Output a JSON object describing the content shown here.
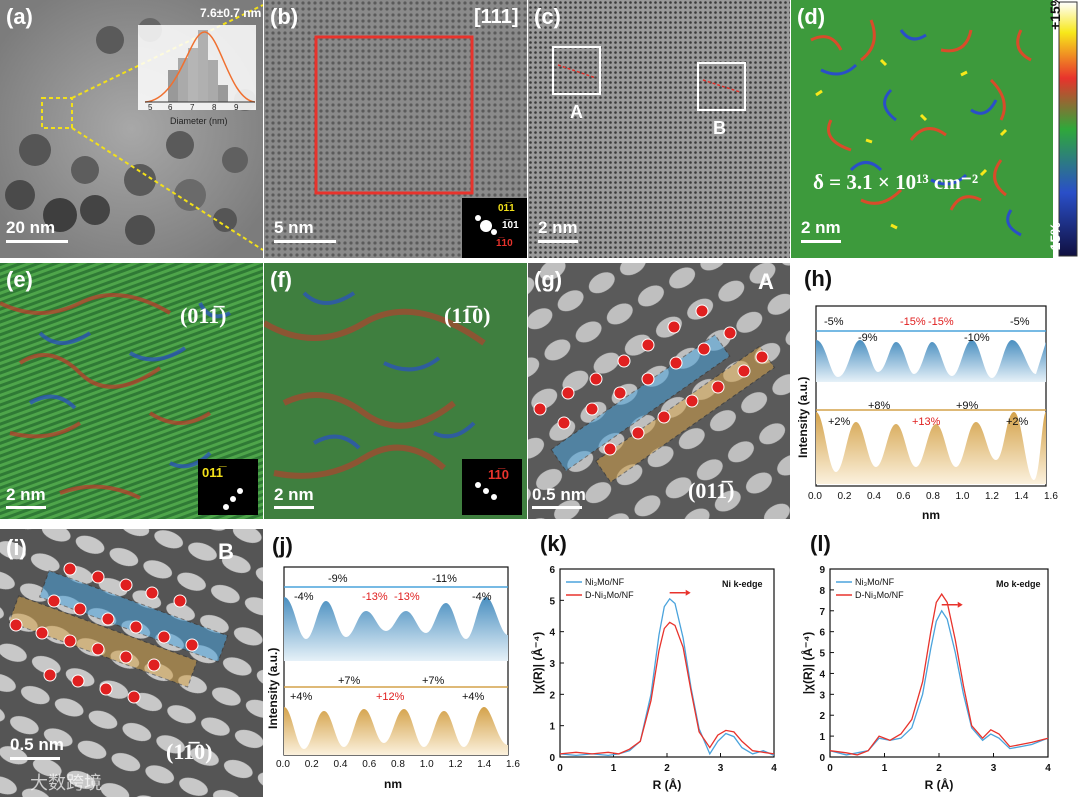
{
  "panels": {
    "a": {
      "label": "(a)",
      "scale": "20 nm",
      "inset_title": "7.6±0.7 nm",
      "inset_xlabel": "Diameter (nm)",
      "inset_ticks": [
        "5",
        "6",
        "7",
        "8",
        "9"
      ]
    },
    "b": {
      "label": "(b)",
      "zone": "[111]",
      "scale": "5 nm",
      "fft_labels": [
        "01̅1",
        "1̅01",
        "1̅10"
      ]
    },
    "c": {
      "label": "(c)",
      "scale": "2 nm",
      "box_a": "A",
      "box_b": "B"
    },
    "d": {
      "label": "(d)",
      "scale": "2 nm",
      "density": "δ = 3.1 × 10¹³ cm⁻²",
      "cbar_top": "+15%",
      "cbar_bottom": "-15%"
    },
    "e": {
      "label": "(e)",
      "plane": "(011̅)",
      "scale": "2 nm",
      "fft": "011̅"
    },
    "f": {
      "label": "(f)",
      "plane": "(11̅0)",
      "scale": "2 nm",
      "fft": "11̅0"
    },
    "g": {
      "label": "(g)",
      "tag": "A",
      "scale": "0.5 nm",
      "plane": "(011̅)"
    },
    "i": {
      "label": "(i)",
      "tag": "B",
      "scale": "0.5 nm",
      "plane": "(11̅0)"
    },
    "h": {
      "label": "(h)",
      "ylabel": "Intensity (a.u.)",
      "xlabel": "nm",
      "xticks": [
        "0.0",
        "0.2",
        "0.4",
        "0.6",
        "0.8",
        "1.0",
        "1.2",
        "1.4",
        "1.6"
      ],
      "top": [
        "-5%",
        "-9%",
        "-15%",
        "-15%",
        "-10%",
        "-5%"
      ],
      "bottom": [
        "+2%",
        "+8%",
        "+13%",
        "+9%",
        "+2%"
      ]
    },
    "j": {
      "label": "(j)",
      "ylabel": "Intensity (a.u.)",
      "xlabel": "nm",
      "xticks": [
        "0.0",
        "0.2",
        "0.4",
        "0.6",
        "0.8",
        "1.0",
        "1.2",
        "1.4",
        "1.6"
      ],
      "top": [
        "-4%",
        "-9%",
        "-13%",
        "-13%",
        "-11%",
        "-4%"
      ],
      "bottom": [
        "+4%",
        "+7%",
        "+12%",
        "+7%",
        "+4%"
      ]
    }
  },
  "colors": {
    "red": "#e8332c",
    "blue": "#4aa3dc",
    "gold": "#d4a24a",
    "accent_red": "#e02020"
  },
  "watermark": "大数跨境",
  "chart_data": [
    {
      "type": "line",
      "panel": "(k)",
      "annotation": "Ni k-edge",
      "xlabel": "R (Å)",
      "ylabel": "|χ(R)| (Å⁻⁴)",
      "xlim": [
        0,
        4
      ],
      "ylim": [
        0,
        6
      ],
      "xticks": [
        "0",
        "1",
        "2",
        "3",
        "4"
      ],
      "yticks": [
        "0",
        "1",
        "2",
        "3",
        "4",
        "5",
        "6"
      ],
      "legend": "top-left",
      "series": [
        {
          "name": "Ni₃Mo/NF",
          "color": "#4aa3dc",
          "x": [
            0,
            0.3,
            0.6,
            0.9,
            1.1,
            1.3,
            1.5,
            1.7,
            1.85,
            1.95,
            2.05,
            2.15,
            2.3,
            2.45,
            2.6,
            2.8,
            2.95,
            3.1,
            3.25,
            3.4,
            3.6,
            3.8,
            4.0
          ],
          "y": [
            0.1,
            0.05,
            0.1,
            0.05,
            0.1,
            0.2,
            0.5,
            2.0,
            3.9,
            4.8,
            5.05,
            4.9,
            3.8,
            2.2,
            0.9,
            0.1,
            0.5,
            0.75,
            0.65,
            0.3,
            0.1,
            0.2,
            0.05
          ]
        },
        {
          "name": "D-Ni₃Mo/NF",
          "color": "#e8332c",
          "x": [
            0,
            0.3,
            0.6,
            0.9,
            1.1,
            1.3,
            1.5,
            1.7,
            1.85,
            1.95,
            2.05,
            2.15,
            2.3,
            2.45,
            2.6,
            2.8,
            2.95,
            3.1,
            3.25,
            3.4,
            3.6,
            3.8,
            4.0
          ],
          "y": [
            0.1,
            0.15,
            0.1,
            0.15,
            0.1,
            0.25,
            0.5,
            1.8,
            3.4,
            4.1,
            4.3,
            4.2,
            3.5,
            2.1,
            0.8,
            0.3,
            0.7,
            0.85,
            0.8,
            0.5,
            0.2,
            0.15,
            0.1
          ]
        }
      ]
    },
    {
      "type": "line",
      "panel": "(l)",
      "annotation": "Mo k-edge",
      "xlabel": "R (Å)",
      "ylabel": "|χ(R)| (Å⁻⁴)",
      "xlim": [
        0,
        4
      ],
      "ylim": [
        0,
        9
      ],
      "xticks": [
        "0",
        "1",
        "2",
        "3",
        "4"
      ],
      "yticks": [
        "0",
        "1",
        "2",
        "3",
        "4",
        "5",
        "6",
        "7",
        "8",
        "9"
      ],
      "legend": "top-left",
      "series": [
        {
          "name": "Ni₃Mo/NF",
          "color": "#4aa3dc",
          "x": [
            0,
            0.3,
            0.5,
            0.7,
            0.9,
            1.1,
            1.3,
            1.5,
            1.7,
            1.85,
            1.95,
            2.05,
            2.15,
            2.3,
            2.45,
            2.6,
            2.8,
            2.95,
            3.1,
            3.3,
            3.5,
            3.7,
            4.0
          ],
          "y": [
            0.3,
            0.1,
            0.2,
            0.3,
            0.9,
            0.8,
            0.9,
            1.4,
            3.0,
            5.2,
            6.5,
            7.0,
            6.6,
            5.0,
            3.0,
            1.4,
            0.8,
            1.1,
            0.9,
            0.4,
            0.5,
            0.6,
            0.9
          ]
        },
        {
          "name": "D-Ni₃Mo/NF",
          "color": "#e8332c",
          "x": [
            0,
            0.3,
            0.5,
            0.7,
            0.9,
            1.1,
            1.3,
            1.5,
            1.7,
            1.85,
            1.95,
            2.05,
            2.15,
            2.3,
            2.45,
            2.6,
            2.8,
            2.95,
            3.1,
            3.3,
            3.5,
            3.7,
            4.0
          ],
          "y": [
            0.3,
            0.2,
            0.1,
            0.3,
            1.0,
            0.8,
            1.1,
            1.8,
            3.6,
            6.0,
            7.4,
            7.8,
            7.4,
            5.6,
            3.4,
            1.5,
            0.9,
            1.3,
            1.1,
            0.5,
            0.6,
            0.7,
            0.9
          ]
        }
      ]
    }
  ]
}
